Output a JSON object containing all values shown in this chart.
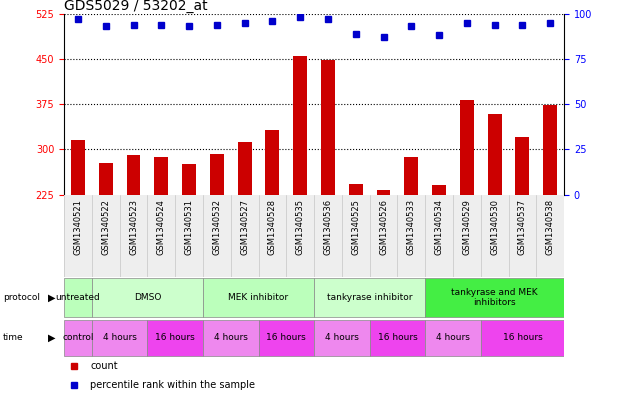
{
  "title": "GDS5029 / 53202_at",
  "samples": [
    "GSM1340521",
    "GSM1340522",
    "GSM1340523",
    "GSM1340524",
    "GSM1340531",
    "GSM1340532",
    "GSM1340527",
    "GSM1340528",
    "GSM1340535",
    "GSM1340536",
    "GSM1340525",
    "GSM1340526",
    "GSM1340533",
    "GSM1340534",
    "GSM1340529",
    "GSM1340530",
    "GSM1340537",
    "GSM1340538"
  ],
  "bar_values": [
    315,
    278,
    290,
    288,
    275,
    293,
    312,
    332,
    455,
    448,
    243,
    232,
    288,
    240,
    382,
    358,
    320,
    374
  ],
  "percentile_values": [
    97,
    93,
    94,
    94,
    93,
    94,
    95,
    96,
    98,
    97,
    89,
    87,
    93,
    88,
    95,
    94,
    94,
    95
  ],
  "ylim_left": [
    225,
    525
  ],
  "ylim_right": [
    0,
    100
  ],
  "yticks_left": [
    225,
    300,
    375,
    450,
    525
  ],
  "yticks_right": [
    0,
    25,
    50,
    75,
    100
  ],
  "bar_color": "#CC0000",
  "dot_color": "#0000CC",
  "grid_color": "#888888",
  "bg_color": "#FFFFFF",
  "protocols": [
    {
      "label": "untreated",
      "start": 0,
      "end": 1,
      "color": "#BBFFBB"
    },
    {
      "label": "DMSO",
      "start": 1,
      "end": 5,
      "color": "#CCFFCC"
    },
    {
      "label": "MEK inhibitor",
      "start": 5,
      "end": 9,
      "color": "#BBFFBB"
    },
    {
      "label": "tankyrase inhibitor",
      "start": 9,
      "end": 13,
      "color": "#CCFFCC"
    },
    {
      "label": "tankyrase and MEK\ninhibitors",
      "start": 13,
      "end": 18,
      "color": "#44EE44"
    }
  ],
  "times": [
    {
      "label": "control",
      "start": 0,
      "end": 1,
      "color": "#EE88EE"
    },
    {
      "label": "4 hours",
      "start": 1,
      "end": 3,
      "color": "#EE88EE"
    },
    {
      "label": "16 hours",
      "start": 3,
      "end": 5,
      "color": "#EE44EE"
    },
    {
      "label": "4 hours",
      "start": 5,
      "end": 7,
      "color": "#EE88EE"
    },
    {
      "label": "16 hours",
      "start": 7,
      "end": 9,
      "color": "#EE44EE"
    },
    {
      "label": "4 hours",
      "start": 9,
      "end": 11,
      "color": "#EE88EE"
    },
    {
      "label": "16 hours",
      "start": 11,
      "end": 13,
      "color": "#EE44EE"
    },
    {
      "label": "4 hours",
      "start": 13,
      "end": 15,
      "color": "#EE88EE"
    },
    {
      "label": "16 hours",
      "start": 15,
      "end": 18,
      "color": "#EE44EE"
    }
  ],
  "legend_bar_color": "#CC0000",
  "legend_dot_color": "#0000CC",
  "title_fontsize": 10,
  "tick_fontsize": 7,
  "label_fontsize": 7,
  "sample_fontsize": 6
}
